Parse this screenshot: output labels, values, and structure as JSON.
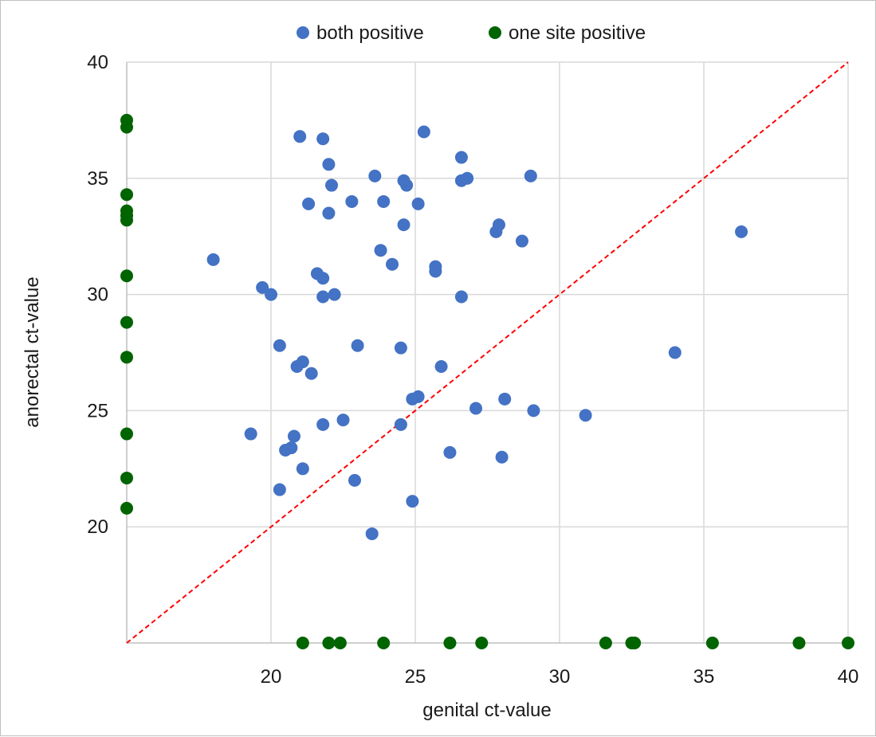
{
  "chart_data": {
    "type": "scatter",
    "title": "",
    "xlabel": "genital ct-value",
    "ylabel": "anorectal ct-value",
    "xlim": [
      15,
      40
    ],
    "ylim": [
      15,
      40
    ],
    "xticks": [
      20,
      25,
      30,
      35,
      40
    ],
    "yticks": [
      20,
      25,
      30,
      35,
      40
    ],
    "grid": true,
    "legend_position": "top",
    "reference_line": {
      "from": [
        15,
        15
      ],
      "to": [
        40,
        40
      ],
      "style": "dashed",
      "color": "#ff0000"
    },
    "series": [
      {
        "name": "both positive",
        "color": "#4472c4",
        "points": [
          [
            18.0,
            31.5
          ],
          [
            19.3,
            24.0
          ],
          [
            19.7,
            30.3
          ],
          [
            20.0,
            30.0
          ],
          [
            20.3,
            27.8
          ],
          [
            20.3,
            21.6
          ],
          [
            20.5,
            23.3
          ],
          [
            20.7,
            23.4
          ],
          [
            20.8,
            23.9
          ],
          [
            20.9,
            26.9
          ],
          [
            21.0,
            36.8
          ],
          [
            21.1,
            27.1
          ],
          [
            21.1,
            22.5
          ],
          [
            21.3,
            33.9
          ],
          [
            21.4,
            26.6
          ],
          [
            21.6,
            30.9
          ],
          [
            21.8,
            36.7
          ],
          [
            21.8,
            30.7
          ],
          [
            21.8,
            29.9
          ],
          [
            21.8,
            24.4
          ],
          [
            22.0,
            35.6
          ],
          [
            22.0,
            33.5
          ],
          [
            22.1,
            34.7
          ],
          [
            22.2,
            30.0
          ],
          [
            22.5,
            24.6
          ],
          [
            22.8,
            34.0
          ],
          [
            22.9,
            22.0
          ],
          [
            23.0,
            27.8
          ],
          [
            23.5,
            19.7
          ],
          [
            23.6,
            35.1
          ],
          [
            23.8,
            31.9
          ],
          [
            23.9,
            34.0
          ],
          [
            24.2,
            31.3
          ],
          [
            24.5,
            27.7
          ],
          [
            24.5,
            24.4
          ],
          [
            24.6,
            34.9
          ],
          [
            24.6,
            33.0
          ],
          [
            24.7,
            34.7
          ],
          [
            24.9,
            25.5
          ],
          [
            24.9,
            21.1
          ],
          [
            25.1,
            33.9
          ],
          [
            25.1,
            25.6
          ],
          [
            25.3,
            37.0
          ],
          [
            25.7,
            31.2
          ],
          [
            25.7,
            31.0
          ],
          [
            25.9,
            26.9
          ],
          [
            26.2,
            23.2
          ],
          [
            26.6,
            35.9
          ],
          [
            26.6,
            34.9
          ],
          [
            26.6,
            29.9
          ],
          [
            26.8,
            35.0
          ],
          [
            27.1,
            25.1
          ],
          [
            27.8,
            32.7
          ],
          [
            27.9,
            33.0
          ],
          [
            28.0,
            23.0
          ],
          [
            28.1,
            25.5
          ],
          [
            28.7,
            32.3
          ],
          [
            29.0,
            35.1
          ],
          [
            29.1,
            25.0
          ],
          [
            30.9,
            24.8
          ],
          [
            34.0,
            27.5
          ],
          [
            36.3,
            32.7
          ]
        ]
      },
      {
        "name": "one site positive",
        "color": "#006400",
        "points": [
          [
            15,
            37.5
          ],
          [
            15,
            37.2
          ],
          [
            15,
            34.3
          ],
          [
            15,
            33.6
          ],
          [
            15,
            33.4
          ],
          [
            15,
            33.2
          ],
          [
            15,
            30.8
          ],
          [
            15,
            28.8
          ],
          [
            15,
            27.3
          ],
          [
            15,
            24.0
          ],
          [
            15,
            22.1
          ],
          [
            15,
            20.8
          ],
          [
            21.1,
            15
          ],
          [
            22.0,
            15
          ],
          [
            22.4,
            15
          ],
          [
            23.9,
            15
          ],
          [
            26.2,
            15
          ],
          [
            27.3,
            15
          ],
          [
            31.6,
            15
          ],
          [
            32.5,
            15
          ],
          [
            32.6,
            15
          ],
          [
            35.3,
            15
          ],
          [
            38.3,
            15
          ],
          [
            40.0,
            15
          ]
        ]
      }
    ]
  }
}
